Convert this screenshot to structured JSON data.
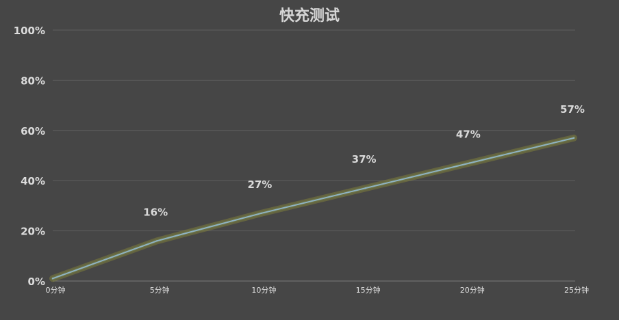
{
  "chart_data": {
    "type": "line",
    "title": "快充测试",
    "xlabel": "",
    "ylabel": "",
    "categories": [
      "0分钟",
      "5分钟",
      "10分钟",
      "15分钟",
      "20分钟",
      "25分钟"
    ],
    "series": [
      {
        "values": [
          1,
          16,
          27,
          37,
          47,
          57
        ],
        "data_labels": [
          "",
          "16%",
          "27%",
          "37%",
          "47%",
          "57%"
        ]
      }
    ],
    "ylim": [
      0,
      100
    ],
    "yticks": [
      0,
      20,
      40,
      60,
      80,
      100
    ],
    "ytick_labels": [
      "0%",
      "20%",
      "40%",
      "60%",
      "80%",
      "100%"
    ],
    "grid": true,
    "legend": "none",
    "colors": {
      "background": "#464646",
      "line": "#8fb3c4",
      "glow": "#8a8a3a",
      "grid": "#5e5e5e",
      "axis": "#7a7a7a"
    }
  }
}
